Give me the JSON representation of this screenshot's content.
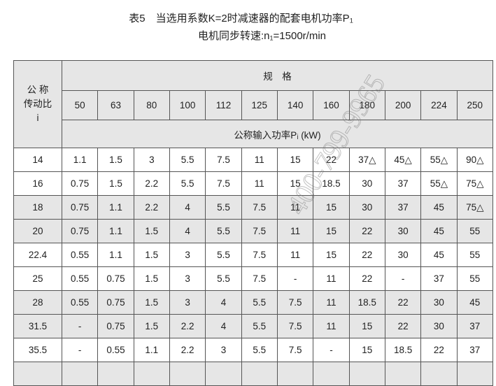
{
  "title": "表5　当选用系数K=2时减速器的配套电机功率P₁",
  "subtitle": "电机同步转速:n₁=1500r/min",
  "header": {
    "ratio_label": "公 称\n传动比\ni",
    "spec_label": "规　格",
    "sizes": [
      "50",
      "63",
      "80",
      "100",
      "112",
      "125",
      "140",
      "160",
      "180",
      "200",
      "224",
      "250"
    ],
    "unit_label": "公称输入功率Pᵢ (kW)"
  },
  "rows": [
    {
      "ratio": "14",
      "values": [
        "1.1",
        "1.5",
        "3",
        "5.5",
        "7.5",
        "11",
        "15",
        "22",
        "37△",
        "45△",
        "55△",
        "90△"
      ]
    },
    {
      "ratio": "16",
      "values": [
        "0.75",
        "1.5",
        "2.2",
        "5.5",
        "7.5",
        "11",
        "15",
        "18.5",
        "30",
        "37",
        "55△",
        "75△"
      ]
    },
    {
      "ratio": "18",
      "values": [
        "0.75",
        "1.1",
        "2.2",
        "4",
        "5.5",
        "7.5",
        "11",
        "15",
        "30",
        "37",
        "45",
        "75△"
      ]
    },
    {
      "ratio": "20",
      "values": [
        "0.75",
        "1.1",
        "1.5",
        "4",
        "5.5",
        "7.5",
        "11",
        "15",
        "22",
        "30",
        "45",
        "55"
      ]
    },
    {
      "ratio": "22.4",
      "values": [
        "0.55",
        "1.1",
        "1.5",
        "3",
        "5.5",
        "7.5",
        "11",
        "15",
        "22",
        "30",
        "45",
        "55"
      ]
    },
    {
      "ratio": "25",
      "values": [
        "0.55",
        "0.75",
        "1.5",
        "3",
        "5.5",
        "7.5",
        "-",
        "11",
        "22",
        "-",
        "37",
        "55"
      ]
    },
    {
      "ratio": "28",
      "values": [
        "0.55",
        "0.75",
        "1.5",
        "3",
        "4",
        "5.5",
        "7.5",
        "11",
        "18.5",
        "22",
        "30",
        "45"
      ]
    },
    {
      "ratio": "31.5",
      "values": [
        "-",
        "0.75",
        "1.5",
        "2.2",
        "4",
        "5.5",
        "7.5",
        "11",
        "15",
        "22",
        "30",
        "37"
      ]
    },
    {
      "ratio": "35.5",
      "values": [
        "-",
        "0.55",
        "1.1",
        "2.2",
        "3",
        "5.5",
        "7.5",
        "-",
        "15",
        "18.5",
        "22",
        "37"
      ]
    }
  ],
  "gray_rows": [
    2,
    3,
    6,
    7
  ],
  "watermark": "400-799-9965"
}
